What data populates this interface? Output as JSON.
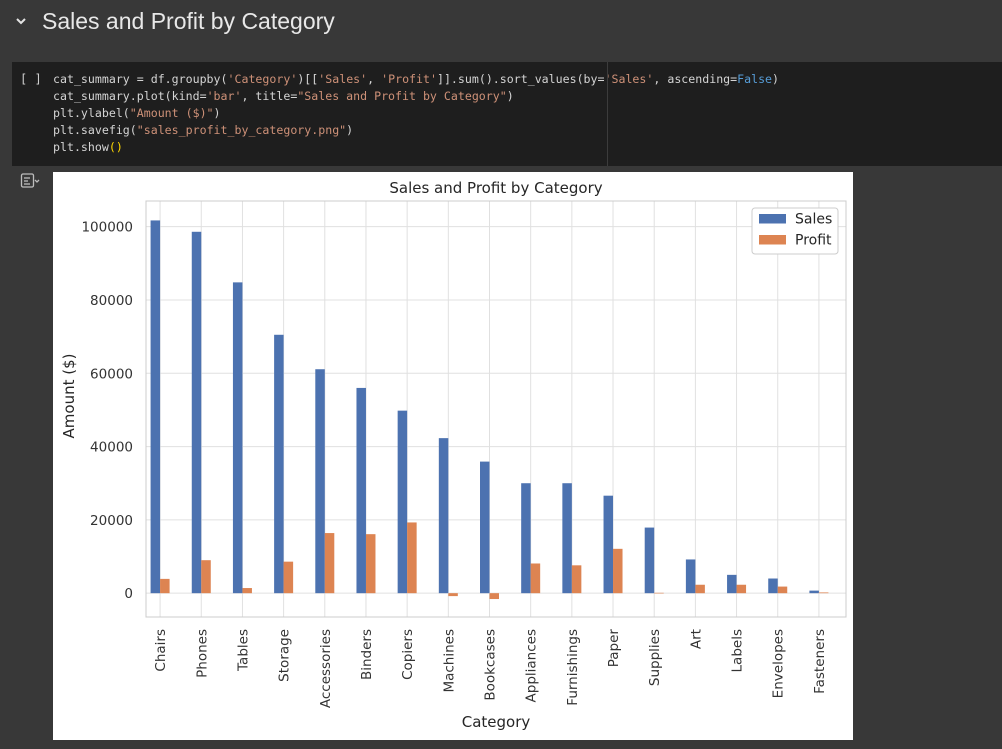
{
  "section": {
    "title": "Sales and Profit by Category"
  },
  "cell": {
    "run_indicator": "[ ]",
    "code": {
      "l1a": "cat_summary = df.groupby(",
      "l1b": "'Category'",
      "l1c": ")[[",
      "l1d": "'Sales'",
      "l1e": ", ",
      "l1f": "'Profit'",
      "l1g": "]].sum().sort_values(by=",
      "l1h": "'Sales'",
      "l1i": ", ascending=",
      "l1j": "False",
      "l1k": ")",
      "l2a": "cat_summary.plot(kind=",
      "l2b": "'bar'",
      "l2c": ", title=",
      "l2d": "\"Sales and Profit by Category\"",
      "l2e": ")",
      "l3a": "plt.ylabel(",
      "l3b": "\"Amount ($)\"",
      "l3c": ")",
      "l4a": "plt.savefig(",
      "l4b": "\"sales_profit_by_category.png\"",
      "l4c": ")",
      "l5a": "plt.show",
      "l5b": "()"
    }
  },
  "colors": {
    "sales": "#4c72b0",
    "profit": "#dd8452"
  },
  "chart_data": {
    "type": "bar",
    "title": "Sales and Profit by Category",
    "xlabel": "Category",
    "ylabel": "Amount ($)",
    "ylim": [
      -6500,
      107000
    ],
    "yticks": [
      0,
      20000,
      40000,
      60000,
      80000,
      100000
    ],
    "ytick_labels": [
      "0",
      "20000",
      "40000",
      "60000",
      "80000",
      "100000"
    ],
    "grid": true,
    "legend": "top-right",
    "categories": [
      "Chairs",
      "Phones",
      "Tables",
      "Storage",
      "Accessories",
      "Binders",
      "Copiers",
      "Machines",
      "Bookcases",
      "Appliances",
      "Furnishings",
      "Paper",
      "Supplies",
      "Art",
      "Labels",
      "Envelopes",
      "Fasteners"
    ],
    "series": [
      {
        "name": "Sales",
        "values": [
          101700,
          98600,
          84800,
          70500,
          61100,
          56000,
          49800,
          42300,
          35900,
          30000,
          30000,
          26600,
          17900,
          9200,
          5000,
          4000,
          700
        ]
      },
      {
        "name": "Profit",
        "values": [
          3900,
          9000,
          1400,
          8600,
          16400,
          16100,
          19300,
          -800,
          -1600,
          8100,
          7600,
          12100,
          100,
          2300,
          2300,
          1800,
          200
        ]
      }
    ]
  }
}
